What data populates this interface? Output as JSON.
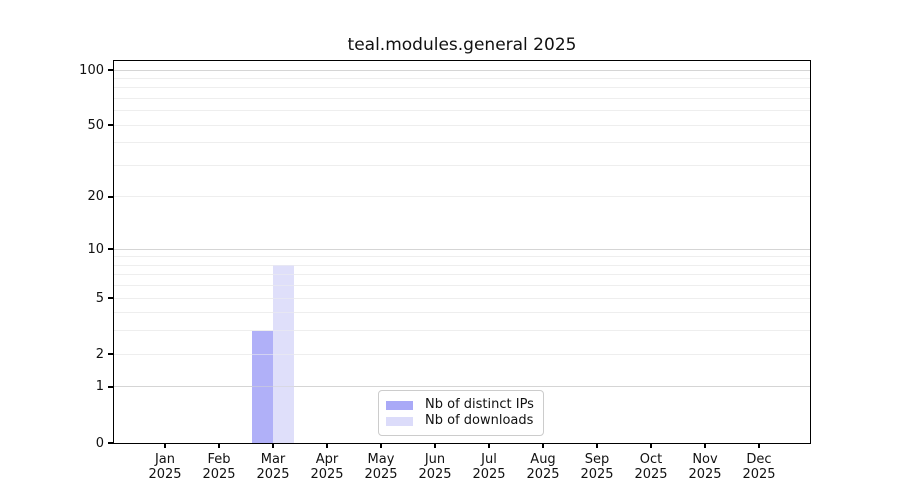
{
  "chart_data": {
    "type": "bar",
    "title": "teal.modules.general 2025",
    "x_categories": [
      "Jan",
      "Feb",
      "Mar",
      "Apr",
      "May",
      "Jun",
      "Jul",
      "Aug",
      "Sep",
      "Oct",
      "Nov",
      "Dec"
    ],
    "x_year": "2025",
    "series": [
      {
        "name": "Nb of distinct IPs",
        "color": "#a9a9f7",
        "values": [
          0,
          0,
          3,
          0,
          0,
          0,
          0,
          0,
          0,
          0,
          0,
          0
        ]
      },
      {
        "name": "Nb of downloads",
        "color": "#dcdcfa",
        "values": [
          0,
          0,
          8,
          0,
          0,
          0,
          0,
          0,
          0,
          0,
          0,
          0
        ]
      }
    ],
    "y_scale": "log10(1+y)",
    "y_ticks": [
      0,
      1,
      2,
      5,
      10,
      20,
      50,
      100
    ],
    "y_major_gridlines": [
      1,
      10,
      100
    ],
    "y_minor_gridlines": [
      2,
      3,
      4,
      5,
      6,
      7,
      8,
      9,
      20,
      30,
      40,
      50,
      60,
      70,
      80,
      90
    ],
    "ylim": [
      0,
      112
    ],
    "grid": true,
    "legend": {
      "position": "lower center inside",
      "items": [
        "Nb of distinct IPs",
        "Nb of downloads"
      ]
    }
  },
  "colors": {
    "spine": "#000000",
    "grid_major": "#d6d6d6",
    "grid_minor": "#eeeeee",
    "text": "#111111",
    "legend_border": "#cccccc",
    "background": "#ffffff"
  }
}
